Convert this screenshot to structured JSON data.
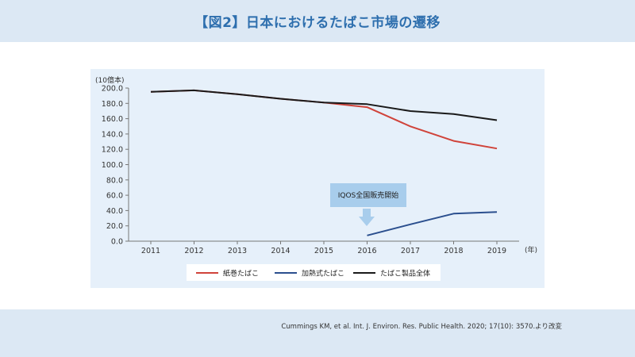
{
  "header": {
    "title": "【図2】日本におけるたばこ市場の遷移"
  },
  "chart_data": {
    "type": "line",
    "title": "",
    "ylabel": "(10億本)",
    "xlabel_unit": "(年)",
    "x": [
      2011,
      2012,
      2013,
      2014,
      2015,
      2016,
      2017,
      2018,
      2019
    ],
    "ylim": [
      0,
      200
    ],
    "yticks": [
      "0.0",
      "20.0",
      "40.0",
      "60.0",
      "80.0",
      "100.0",
      "120.0",
      "140.0",
      "160.0",
      "180.0",
      "200.0"
    ],
    "grid": false,
    "legend_position": "bottom",
    "series": [
      {
        "name": "紙巻たばこ",
        "color": "#d0433a",
        "points": [
          [
            2011,
            195
          ],
          [
            2012,
            197
          ],
          [
            2013,
            192
          ],
          [
            2014,
            186
          ],
          [
            2015,
            181
          ],
          [
            2016,
            175
          ],
          [
            2017,
            150
          ],
          [
            2018,
            131
          ],
          [
            2019,
            121
          ]
        ]
      },
      {
        "name": "加熱式たばこ",
        "color": "#2b4f8e",
        "points": [
          [
            2016,
            7.5
          ],
          [
            2017,
            22
          ],
          [
            2018,
            36
          ],
          [
            2019,
            38
          ]
        ]
      },
      {
        "name": "たばこ製品全体",
        "color": "#1a1a1a",
        "points": [
          [
            2011,
            195
          ],
          [
            2012,
            197
          ],
          [
            2013,
            192
          ],
          [
            2014,
            186
          ],
          [
            2015,
            181
          ],
          [
            2016,
            179
          ],
          [
            2017,
            170
          ],
          [
            2018,
            166
          ],
          [
            2019,
            158
          ]
        ]
      }
    ],
    "annotation": {
      "text": "IQOS全国販売開始",
      "x": 2016
    }
  },
  "footer": {
    "citation": "Cummings KM, et al. Int. J. Environ. Res. Public Health. 2020; 17(10): 3570.より改変"
  }
}
